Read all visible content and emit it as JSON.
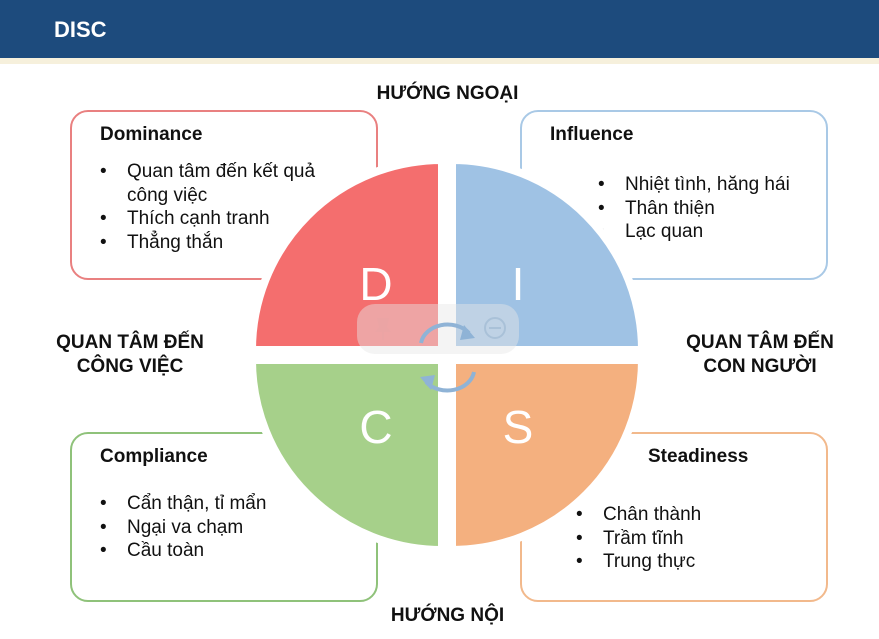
{
  "header": {
    "title": "DISC"
  },
  "axes": {
    "top": "HƯỚNG NGOẠI",
    "bottom": "HƯỚNG NỘI",
    "left_line1": "QUAN TÂM ĐẾN",
    "left_line2": "CÔNG VIỆC",
    "right_line1": "QUAN TÂM ĐẾN",
    "right_line2": "CON NGƯỜI"
  },
  "quadrants": {
    "d": {
      "letter": "D",
      "color": "#f46e6e"
    },
    "i": {
      "letter": "I",
      "color": "#9fc2e4"
    },
    "c": {
      "letter": "C",
      "color": "#a6d08a"
    },
    "s": {
      "letter": "S",
      "color": "#f4b07f"
    }
  },
  "cards": {
    "dominance": {
      "title": "Dominance",
      "border": "#e98080",
      "items": [
        "Quan tâm đến kết quả công việc",
        "Thích cạnh tranh",
        "Thẳng thắn"
      ]
    },
    "influence": {
      "title": "Influence",
      "border": "#a9c9e6",
      "items": [
        "Nhiệt tình, hăng hái",
        "Thân thiện",
        "Lạc quan"
      ]
    },
    "compliance": {
      "title": "Compliance",
      "border": "#8fc27a",
      "items": [
        "Cẩn thận, tỉ mẩn",
        "Ngại va chạm",
        "Cầu toàn"
      ]
    },
    "steadiness": {
      "title": "Steadiness",
      "border": "#f2b98c",
      "items": [
        "Chân thành",
        "Trầm tĩnh",
        "Trung thực"
      ]
    }
  }
}
